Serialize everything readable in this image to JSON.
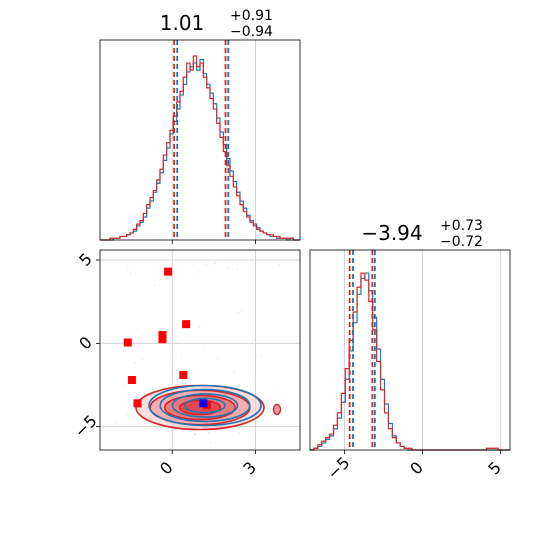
{
  "chart_data": {
    "type": "corner",
    "colors": {
      "red": "#d62728",
      "blue": "#1f77b4",
      "marker_red": "#ff0000",
      "marker_blue": "#0000ff",
      "grid": "#cccccc"
    },
    "params": [
      {
        "title_value": "1.01",
        "title_plus": "+0.91",
        "title_minus": "−0.94",
        "median": 1.01,
        "lower": 0.07,
        "upper": 1.92,
        "blue_lower": 0.18,
        "blue_upper": 2.02,
        "xlim": [
          -2.6,
          4.6
        ],
        "ticks": [
          0,
          3
        ],
        "tick_labels": [
          "0",
          "3"
        ]
      },
      {
        "title_value": "−3.94",
        "title_plus": "+0.73",
        "title_minus": "−0.72",
        "median": -3.94,
        "lower": -4.66,
        "upper": -3.21,
        "blue_lower": -4.45,
        "blue_upper": -3.05,
        "xlim": [
          -7.2,
          5.6
        ],
        "ticks": [
          -5,
          0,
          5
        ],
        "tick_labels": [
          "−5",
          "0",
          "5"
        ]
      }
    ],
    "joint": {
      "ylim": [
        -6.4,
        5.6
      ],
      "yticks": [
        -5,
        0,
        5
      ],
      "ytick_labels": [
        "−5",
        "0",
        "5"
      ],
      "red_points": [
        {
          "x": -0.15,
          "y": 4.3
        },
        {
          "x": -0.35,
          "y": 0.5
        },
        {
          "x": -0.35,
          "y": 0.25
        },
        {
          "x": 0.5,
          "y": 1.15
        },
        {
          "x": -1.6,
          "y": 0.05
        },
        {
          "x": -1.45,
          "y": -2.2
        },
        {
          "x": 0.4,
          "y": -1.9
        },
        {
          "x": -1.25,
          "y": -3.6
        },
        {
          "x": 1.25,
          "y": -3.7
        }
      ],
      "blue_points": [
        {
          "x": 1.12,
          "y": -3.6
        }
      ]
    },
    "hist1_bins": [
      0,
      0,
      0,
      1,
      1,
      1,
      2,
      2,
      3,
      4,
      6,
      9,
      11,
      15,
      20,
      24,
      28,
      34,
      40,
      48,
      55,
      62,
      70,
      78,
      84,
      92,
      100,
      96,
      104,
      98,
      100,
      92,
      86,
      80,
      74,
      66,
      58,
      50,
      42,
      36,
      30,
      25,
      20,
      16,
      13,
      10,
      8,
      6,
      5,
      4,
      3,
      3,
      2,
      2,
      1,
      1,
      1,
      1,
      0,
      0
    ],
    "hist1_bins_blue": [
      0,
      0,
      0,
      0,
      1,
      1,
      2,
      2,
      3,
      4,
      5,
      8,
      10,
      13,
      18,
      22,
      27,
      32,
      38,
      45,
      52,
      60,
      67,
      74,
      82,
      88,
      95,
      98,
      100,
      96,
      102,
      94,
      88,
      83,
      77,
      69,
      61,
      54,
      46,
      39,
      33,
      27,
      22,
      18,
      14,
      11,
      9,
      7,
      5,
      4,
      3,
      2,
      2,
      1,
      1,
      1,
      0,
      1,
      0,
      0
    ],
    "hist2_bins": [
      0,
      1,
      3,
      5,
      7,
      9,
      14,
      21,
      32,
      46,
      62,
      78,
      92,
      100,
      96,
      84,
      68,
      50,
      34,
      21,
      12,
      7,
      4,
      2,
      1,
      1,
      0,
      0,
      0,
      0,
      0,
      0,
      0,
      0,
      0,
      0,
      0,
      0,
      0,
      0,
      0,
      0,
      0,
      0,
      0,
      1,
      1,
      1,
      0,
      0,
      0
    ],
    "hist2_bins_blue": [
      0,
      1,
      2,
      4,
      6,
      8,
      12,
      18,
      27,
      40,
      56,
      72,
      88,
      97,
      100,
      90,
      75,
      57,
      40,
      26,
      15,
      8,
      4,
      2,
      1,
      0,
      0,
      0,
      0,
      0,
      0,
      0,
      0,
      0,
      0,
      0,
      0,
      0,
      0,
      0,
      0,
      0,
      0,
      0,
      0,
      0,
      0,
      0,
      0,
      0,
      0
    ]
  }
}
